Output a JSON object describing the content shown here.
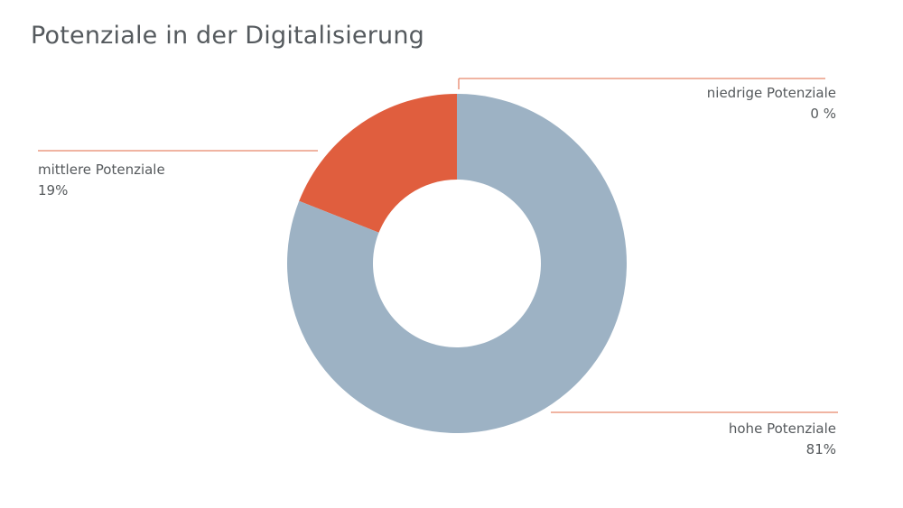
{
  "chart_data": {
    "type": "pie",
    "title": "Potenziale in der Digitalisierung",
    "slices": [
      {
        "name": "niedrige Potenziale",
        "value": 0,
        "label": "0 %",
        "color": "#e05e3e"
      },
      {
        "name": "mittlere Potenziale",
        "value": 19,
        "label": "19%",
        "color": "#e05e3e"
      },
      {
        "name": "hohe Potenziale",
        "value": 81,
        "label": "81%",
        "color": "#9db2c4"
      }
    ],
    "legend": "none",
    "leader_line_color": "#e8866a"
  }
}
